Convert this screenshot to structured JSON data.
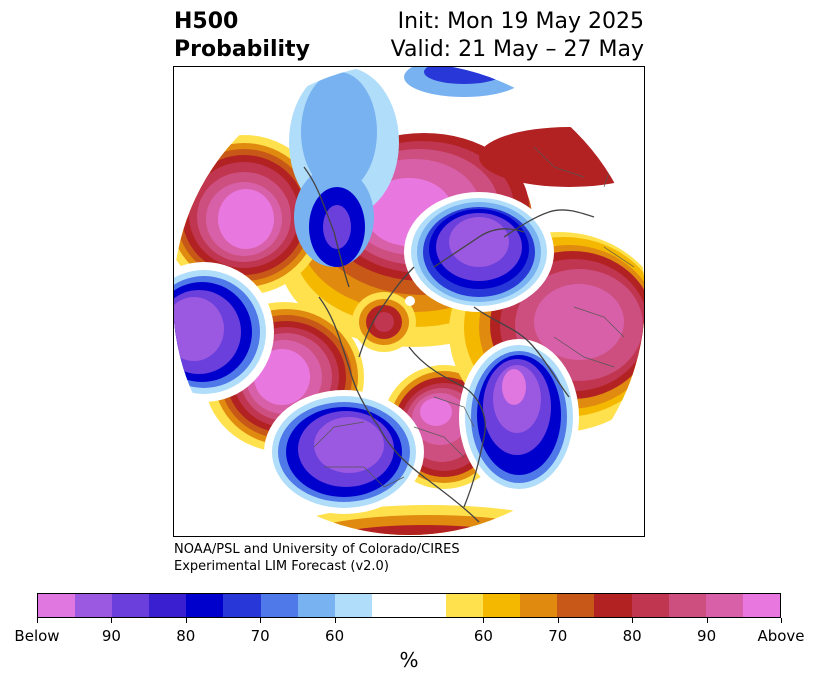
{
  "title": {
    "variable": "H500",
    "kind": "Probability",
    "init": "Init: Mon 19 May 2025",
    "valid": "Valid: 21 May – 27 May"
  },
  "credit": {
    "line1": "NOAA/PSL and University of Colorado/CIRES",
    "line2": "Experimental LIM Forecast (v2.0)"
  },
  "colorbar": {
    "colors": [
      "#e076e0",
      "#9b58e0",
      "#6a3fdc",
      "#3a1fd0",
      "#0000cc",
      "#2838d8",
      "#4f78e8",
      "#78b2f0",
      "#b0ddfa",
      "#ffffff",
      "#ffffff",
      "#ffe14d",
      "#f5b800",
      "#e08a10",
      "#c85818",
      "#b22222",
      "#c03550",
      "#cd4f7f",
      "#d860a8",
      "#e878e0"
    ],
    "tick_labels": [
      "Below",
      "90",
      "80",
      "70",
      "60",
      "60",
      "70",
      "80",
      "90",
      "Above"
    ],
    "unit": "%"
  },
  "map": {
    "projection": "north-polar-stereographic",
    "anomalies": [
      {
        "sign": "below",
        "region": "Greenland / Baffin Bay"
      },
      {
        "sign": "below",
        "region": "Central Siberia"
      },
      {
        "sign": "below",
        "region": "Eastern North Pacific / Gulf of Alaska"
      },
      {
        "sign": "below",
        "region": "Western United States"
      },
      {
        "sign": "below",
        "region": "North Atlantic"
      },
      {
        "sign": "above",
        "region": "Arctic Ocean / Beaufort Sea"
      },
      {
        "sign": "above",
        "region": "Europe"
      },
      {
        "sign": "above",
        "region": "Eastern Canada / Great Lakes"
      },
      {
        "sign": "above",
        "region": "Central North Pacific"
      },
      {
        "sign": "above",
        "region": "Mongolia / Northern China"
      },
      {
        "sign": "above",
        "region": "Northwestern Russia"
      }
    ]
  }
}
